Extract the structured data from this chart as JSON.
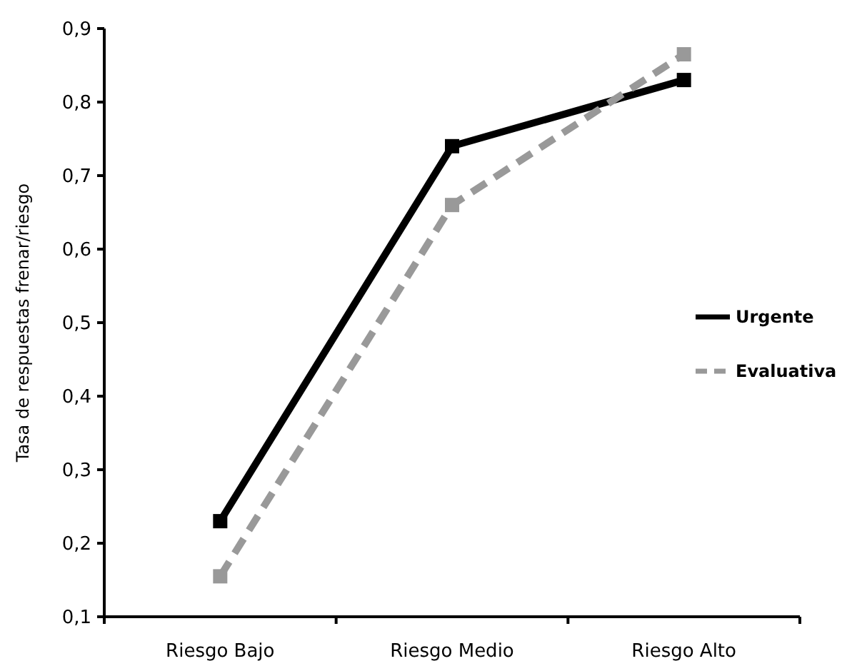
{
  "chart_data": {
    "type": "line",
    "ylabel": "Tasa de respuestas frenar/riesgo",
    "categories": [
      "Riesgo Bajo",
      "Riesgo Medio",
      "Riesgo Alto"
    ],
    "ylim": [
      0.1,
      0.9
    ],
    "yticks": [
      {
        "value": 0.1,
        "label": "0,1"
      },
      {
        "value": 0.2,
        "label": "0,2"
      },
      {
        "value": 0.3,
        "label": "0,3"
      },
      {
        "value": 0.4,
        "label": "0,4"
      },
      {
        "value": 0.5,
        "label": "0,5"
      },
      {
        "value": 0.6,
        "label": "0,6"
      },
      {
        "value": 0.7,
        "label": "0,7"
      },
      {
        "value": 0.8,
        "label": "0,8"
      },
      {
        "value": 0.9,
        "label": "0,9"
      }
    ],
    "series": [
      {
        "name": "Urgente",
        "color": "#000000",
        "values": [
          0.23,
          0.74,
          0.83
        ],
        "line_style": "solid"
      },
      {
        "name": "Evaluativa",
        "color": "#999999",
        "values": [
          0.155,
          0.66,
          0.865
        ],
        "line_style": "dashed"
      }
    ],
    "marker": "square",
    "legend": "right",
    "grid": false
  }
}
